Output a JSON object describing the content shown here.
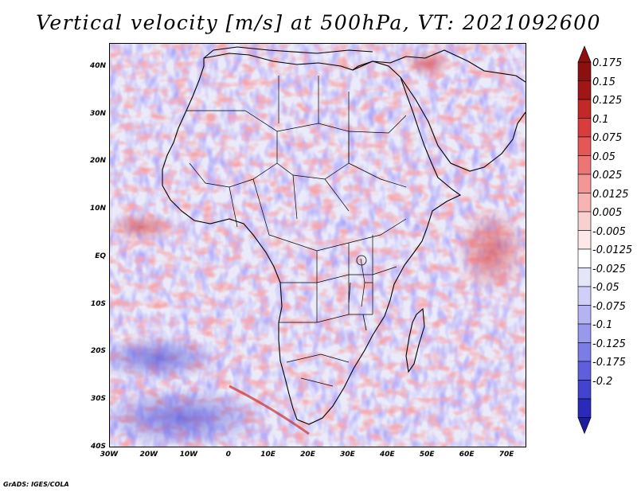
{
  "title": "Vertical velocity [m/s] at 500hPa, VT: 2021092600",
  "credit": "GrADS: IGES/COLA",
  "map": {
    "region": "Africa",
    "lon_range": [
      -30,
      75
    ],
    "lat_range": [
      -40,
      45
    ],
    "lat_ticks": [
      {
        "lat": 40,
        "label": "40N"
      },
      {
        "lat": 30,
        "label": "30N"
      },
      {
        "lat": 20,
        "label": "20N"
      },
      {
        "lat": 10,
        "label": "10N"
      },
      {
        "lat": 0,
        "label": "EQ"
      },
      {
        "lat": -10,
        "label": "10S"
      },
      {
        "lat": -20,
        "label": "20S"
      },
      {
        "lat": -30,
        "label": "30S"
      },
      {
        "lat": -40,
        "label": "40S"
      }
    ],
    "lon_ticks": [
      {
        "lon": -30,
        "label": "30W"
      },
      {
        "lon": -20,
        "label": "20W"
      },
      {
        "lon": -10,
        "label": "10W"
      },
      {
        "lon": 0,
        "label": "0"
      },
      {
        "lon": 10,
        "label": "10E"
      },
      {
        "lon": 20,
        "label": "20E"
      },
      {
        "lon": 30,
        "label": "30E"
      },
      {
        "lon": 40,
        "label": "40E"
      },
      {
        "lon": 50,
        "label": "50E"
      },
      {
        "lon": 60,
        "label": "60E"
      },
      {
        "lon": 70,
        "label": "70E"
      }
    ]
  },
  "colorbar": {
    "levels": [
      {
        "label": "0.175",
        "color": "#a01616"
      },
      {
        "label": "0.15",
        "color": "#c22828"
      },
      {
        "label": "0.125",
        "color": "#d93c3c"
      },
      {
        "label": "0.1",
        "color": "#e55656"
      },
      {
        "label": "0.075",
        "color": "#ec7676"
      },
      {
        "label": "0.05",
        "color": "#f29696"
      },
      {
        "label": "0.025",
        "color": "#f6b4b4"
      },
      {
        "label": "0.0125",
        "color": "#f9d0d0"
      },
      {
        "label": "0.005",
        "color": "#fce8e8"
      },
      {
        "label": "-0.005",
        "color": "#ffffff"
      },
      {
        "label": "-0.0125",
        "color": "#e6e6fb"
      },
      {
        "label": "-0.025",
        "color": "#cfcff7"
      },
      {
        "label": "-0.05",
        "color": "#b4b4f2"
      },
      {
        "label": "-0.075",
        "color": "#9898ec"
      },
      {
        "label": "-0.1",
        "color": "#7c7ce6"
      },
      {
        "label": "-0.125",
        "color": "#5f5fdb"
      },
      {
        "label": "-0.175",
        "color": "#4343cf"
      },
      {
        "label": "-0.2",
        "color": "#2a2ab8"
      }
    ],
    "top_color": "#8c1010",
    "bottom_color": "#1c1ca0"
  }
}
